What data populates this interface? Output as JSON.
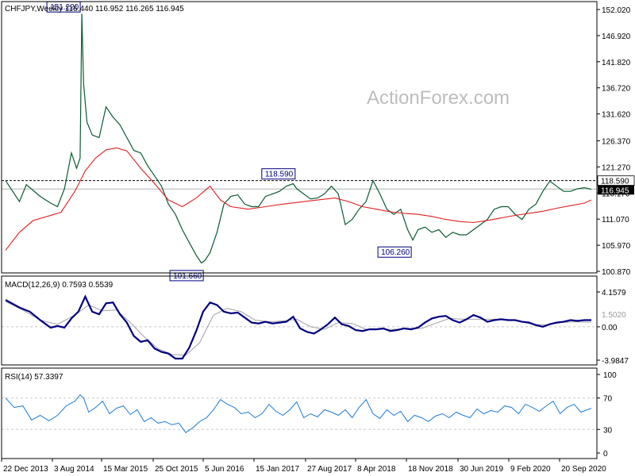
{
  "chart_data": [
    {
      "type": "line",
      "panel": "price",
      "title": "CHFJPY,Weekly  116.440 116.952 116.265 116.945",
      "watermark": "ActionForex.com",
      "price_style": "bar (OHLC)",
      "ylim": [
        100.87,
        152.021
      ],
      "y_ticks": [
        "152.020",
        "146.920",
        "141.820",
        "136.720",
        "131.620",
        "126.370",
        "121.270",
        "116.170",
        "111.070",
        "105.970",
        "100.870"
      ],
      "x_ticks": [
        "22 Dec 2013",
        "3 Aug 2014",
        "15 Mar 2015",
        "25 Oct 2015",
        "5 Jun 2016",
        "15 Jan 2017",
        "27 Aug 2017",
        "8 Apr 2018",
        "18 Nov 2018",
        "30 Jun 2019",
        "9 Feb 2020",
        "20 Sep 2020"
      ],
      "current_price": "116.945",
      "resistance_level": "118.590",
      "annotations": [
        {
          "label": "151.220",
          "x_index": 44,
          "y": 151.22
        },
        {
          "label": "118.590",
          "x_index": 168,
          "y": 118.59
        },
        {
          "label": "101.660",
          "x_index": 115,
          "y": 101.66
        },
        {
          "label": "106.260",
          "x_index": 235,
          "y": 106.26
        }
      ],
      "series": [
        {
          "name": "price",
          "color": "#0a5c32",
          "x_index": [
            0,
            8,
            12,
            20,
            26,
            30,
            34,
            38,
            41,
            43,
            44,
            45,
            47,
            50,
            54,
            58,
            62,
            66,
            70,
            74,
            78,
            82,
            86,
            90,
            94,
            98,
            102,
            106,
            110,
            113,
            115,
            118,
            122,
            126,
            130,
            134,
            138,
            142,
            146,
            150,
            154,
            158,
            162,
            166,
            168,
            172,
            176,
            180,
            184,
            188,
            192,
            196,
            200,
            204,
            208,
            212,
            216,
            220,
            224,
            228,
            232,
            235,
            238,
            242,
            246,
            250,
            254,
            258,
            262,
            266,
            270,
            274,
            278,
            282,
            286,
            290,
            294,
            298,
            302,
            306,
            310,
            314,
            318,
            322,
            326,
            330,
            334,
            338
          ],
          "y": [
            118.6,
            114.5,
            117.8,
            115.5,
            114.2,
            113.5,
            117.0,
            124.0,
            121.0,
            123.0,
            151.2,
            137.5,
            130.0,
            127.5,
            127.0,
            133.0,
            131.0,
            129.5,
            127.0,
            124.5,
            124.0,
            121.5,
            119.5,
            117.5,
            114.0,
            112.0,
            109.0,
            106.5,
            104.0,
            102.5,
            103.0,
            104.5,
            108.5,
            114.0,
            115.5,
            115.8,
            114.0,
            113.5,
            113.5,
            115.5,
            116.0,
            116.5,
            117.5,
            118.0,
            117.0,
            116.0,
            115.0,
            115.2,
            116.0,
            117.5,
            116.0,
            110.0,
            111.0,
            113.0,
            114.5,
            118.6,
            116.0,
            113.0,
            112.0,
            113.0,
            109.0,
            107.0,
            109.0,
            109.5,
            108.5,
            109.0,
            107.5,
            108.5,
            108.0,
            108.0,
            109.0,
            110.0,
            111.0,
            113.0,
            113.5,
            113.5,
            112.0,
            111.0,
            113.0,
            114.0,
            116.5,
            118.5,
            117.5,
            116.5,
            116.5,
            117.0,
            117.2,
            116.9
          ]
        },
        {
          "name": "moving average",
          "color": "#e02020",
          "x_index": [
            0,
            8,
            16,
            24,
            32,
            40,
            46,
            52,
            58,
            64,
            70,
            78,
            86,
            94,
            102,
            110,
            118,
            124,
            130,
            140,
            150,
            160,
            170,
            180,
            190,
            198,
            206,
            214,
            222,
            230,
            238,
            246,
            254,
            262,
            270,
            278,
            286,
            294,
            302,
            310,
            318,
            326,
            334,
            338
          ],
          "y": [
            105.0,
            108.5,
            110.8,
            111.6,
            112.4,
            116.5,
            120.5,
            123.0,
            124.6,
            125.0,
            124.4,
            121.0,
            118.0,
            114.8,
            113.5,
            115.2,
            117.5,
            114.8,
            113.5,
            113.0,
            113.5,
            114.0,
            114.4,
            114.8,
            115.2,
            114.5,
            113.5,
            113.0,
            112.5,
            112.2,
            112.0,
            111.6,
            111.0,
            110.6,
            110.4,
            110.8,
            111.3,
            111.8,
            112.2,
            112.6,
            113.2,
            113.7,
            114.2,
            114.8
          ]
        }
      ]
    },
    {
      "type": "line",
      "panel": "macd",
      "title": "MACD(12,26,9)  0.7593 0.5539",
      "ylim": [
        -3.9847,
        4.1579
      ],
      "y_ticks": [
        "4.1579",
        "0.00",
        "-3.9847"
      ],
      "y_tick_partial": "1.5020",
      "series": [
        {
          "name": "MACD",
          "color": "#000080",
          "x_index": [
            0,
            8,
            14,
            20,
            26,
            30,
            34,
            38,
            42,
            46,
            50,
            54,
            58,
            62,
            66,
            70,
            74,
            78,
            82,
            86,
            90,
            94,
            98,
            102,
            106,
            110,
            114,
            118,
            122,
            126,
            130,
            134,
            138,
            142,
            146,
            150,
            154,
            158,
            162,
            166,
            170,
            174,
            178,
            182,
            186,
            190,
            194,
            198,
            202,
            206,
            210,
            214,
            218,
            222,
            226,
            230,
            234,
            238,
            242,
            246,
            250,
            254,
            258,
            262,
            266,
            270,
            274,
            278,
            282,
            286,
            290,
            294,
            298,
            302,
            306,
            310,
            314,
            318,
            322,
            326,
            330,
            334,
            338
          ],
          "y": [
            3.2,
            2.3,
            1.8,
            0.8,
            -0.1,
            0.1,
            -0.1,
            1.0,
            1.8,
            3.6,
            1.8,
            1.5,
            2.8,
            2.9,
            1.5,
            0.5,
            -1.1,
            -1.8,
            -1.6,
            -2.6,
            -3.0,
            -3.2,
            -3.8,
            -3.8,
            -2.5,
            -0.5,
            1.8,
            2.9,
            2.6,
            1.8,
            1.6,
            1.7,
            1.1,
            0.5,
            0.4,
            0.6,
            0.4,
            0.5,
            0.6,
            1.2,
            -0.2,
            -0.6,
            -0.8,
            -0.3,
            0.3,
            1.1,
            0.3,
            0.1,
            -0.4,
            -0.5,
            -0.3,
            -0.3,
            -0.2,
            -0.5,
            -0.4,
            -0.2,
            -0.3,
            -0.1,
            0.5,
            1.0,
            1.2,
            1.3,
            0.8,
            0.5,
            0.9,
            1.4,
            1.1,
            0.6,
            0.8,
            0.9,
            0.8,
            0.8,
            0.6,
            0.5,
            0.2,
            0.0,
            0.3,
            0.5,
            0.6,
            0.8,
            0.7,
            0.8,
            0.8
          ]
        },
        {
          "name": "Signal",
          "color": "#a0a0a0",
          "x_index": [
            0,
            10,
            20,
            30,
            40,
            48,
            56,
            64,
            72,
            80,
            88,
            96,
            104,
            112,
            120,
            128,
            136,
            144,
            152,
            160,
            168,
            176,
            184,
            192,
            200,
            208,
            216,
            224,
            232,
            240,
            248,
            256,
            264,
            272,
            280,
            288,
            296,
            304,
            312,
            320,
            328,
            338
          ],
          "y": [
            3.0,
            2.0,
            0.8,
            0.3,
            1.4,
            2.6,
            1.9,
            2.0,
            0.5,
            -1.2,
            -2.6,
            -3.3,
            -3.4,
            -1.9,
            1.4,
            2.2,
            1.8,
            0.8,
            0.6,
            0.7,
            0.9,
            0.0,
            -0.3,
            0.5,
            0.4,
            -0.3,
            -0.3,
            -0.3,
            -0.2,
            -0.2,
            0.4,
            1.0,
            0.9,
            0.9,
            0.9,
            0.9,
            0.7,
            0.3,
            0.2,
            0.5,
            0.6,
            0.55
          ]
        }
      ]
    },
    {
      "type": "line",
      "panel": "rsi",
      "title": "RSI(14)  57.3397",
      "ylim": [
        0,
        100
      ],
      "y_ticks": [
        "100",
        "70",
        "30",
        "0"
      ],
      "reference_levels": [
        70,
        30
      ],
      "series": [
        {
          "name": "RSI",
          "color": "#1e7bd6",
          "x_index": [
            0,
            5,
            10,
            15,
            20,
            25,
            30,
            35,
            40,
            43,
            45,
            48,
            52,
            56,
            60,
            64,
            68,
            72,
            76,
            80,
            84,
            88,
            92,
            96,
            100,
            104,
            108,
            112,
            116,
            120,
            124,
            128,
            132,
            136,
            140,
            144,
            148,
            152,
            156,
            160,
            164,
            168,
            172,
            176,
            180,
            184,
            188,
            192,
            196,
            200,
            204,
            208,
            212,
            216,
            220,
            224,
            228,
            232,
            236,
            240,
            244,
            248,
            252,
            256,
            260,
            264,
            268,
            272,
            276,
            280,
            284,
            288,
            292,
            296,
            300,
            304,
            308,
            312,
            316,
            320,
            324,
            328,
            332,
            338
          ],
          "y": [
            70,
            58,
            60,
            42,
            48,
            41,
            48,
            60,
            66,
            74,
            70,
            52,
            58,
            66,
            50,
            57,
            60,
            49,
            55,
            40,
            45,
            38,
            40,
            36,
            38,
            26,
            32,
            40,
            45,
            55,
            68,
            62,
            58,
            50,
            52,
            45,
            50,
            62,
            53,
            48,
            55,
            65,
            45,
            50,
            46,
            55,
            52,
            48,
            55,
            45,
            58,
            68,
            50,
            44,
            55,
            48,
            53,
            40,
            48,
            45,
            40,
            47,
            50,
            45,
            52,
            48,
            45,
            56,
            50,
            54,
            52,
            60,
            58,
            50,
            62,
            58,
            53,
            60,
            66,
            50,
            58,
            62,
            52,
            57
          ]
        }
      ]
    }
  ]
}
